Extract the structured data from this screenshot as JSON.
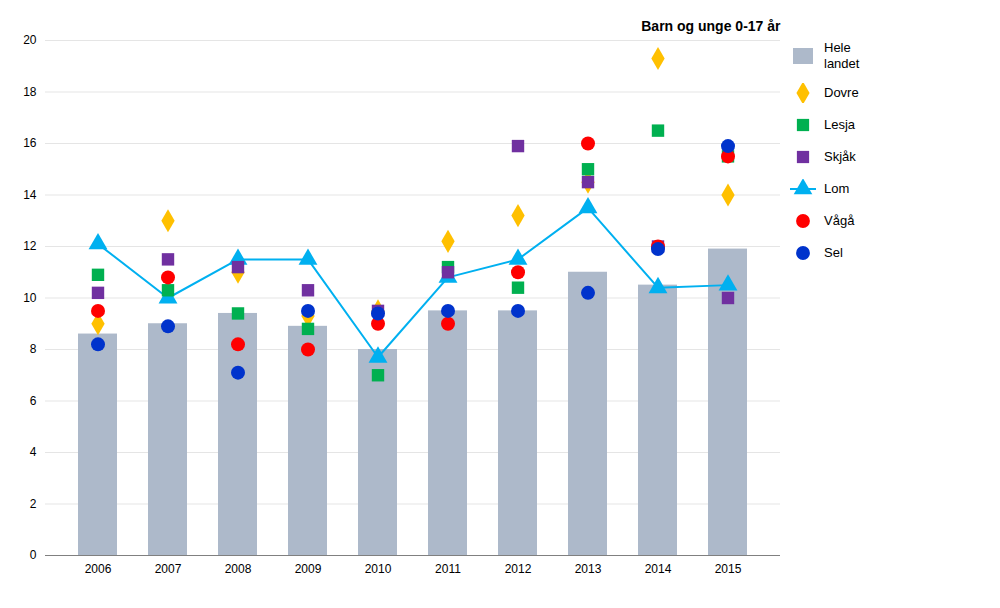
{
  "chart_data": {
    "type": "bar",
    "annotation": "Barn og unge 0-17 år",
    "categories": [
      "2006",
      "2007",
      "2008",
      "2009",
      "2010",
      "2011",
      "2012",
      "2013",
      "2014",
      "2015"
    ],
    "series": [
      {
        "name": "Hele\nlandet",
        "type": "bar",
        "color": "#adb9ca",
        "values": [
          8.6,
          9.0,
          9.4,
          8.9,
          8.0,
          9.5,
          9.5,
          11.0,
          10.5,
          11.9
        ]
      },
      {
        "name": "Dovre",
        "type": "scatter",
        "marker": "diamond",
        "color": "#ffc000",
        "values": [
          9.0,
          13.0,
          11.0,
          9.3,
          9.5,
          12.2,
          13.2,
          14.5,
          19.3,
          14.0
        ]
      },
      {
        "name": "Lesja",
        "type": "scatter",
        "marker": "square",
        "color": "#00b050",
        "values": [
          10.9,
          10.3,
          9.4,
          8.8,
          7.0,
          11.2,
          10.4,
          15.0,
          16.5,
          15.5
        ]
      },
      {
        "name": "Skjåk",
        "type": "scatter",
        "marker": "square",
        "color": "#7030a0",
        "values": [
          10.2,
          11.5,
          11.2,
          10.3,
          9.5,
          11.0,
          15.9,
          14.5,
          12.0,
          10.0
        ]
      },
      {
        "name": "Lom",
        "type": "line",
        "marker": "triangle",
        "color": "#00b0f0",
        "values": [
          12.1,
          10.0,
          11.5,
          11.5,
          7.7,
          10.8,
          11.5,
          13.5,
          10.4,
          10.5
        ]
      },
      {
        "name": "Vågå",
        "type": "scatter",
        "marker": "circle",
        "color": "#ff0000",
        "values": [
          9.5,
          10.8,
          8.2,
          8.0,
          9.0,
          9.0,
          11.0,
          16.0,
          12.0,
          15.5
        ]
      },
      {
        "name": "Sel",
        "type": "scatter",
        "marker": "circle",
        "color": "#0033cc",
        "values": [
          8.2,
          8.9,
          7.1,
          9.5,
          9.4,
          9.5,
          9.5,
          10.2,
          11.9,
          15.9
        ]
      }
    ],
    "ylim": [
      0,
      20
    ],
    "yticks": [
      0,
      2,
      4,
      6,
      8,
      10,
      12,
      14,
      16,
      18,
      20
    ],
    "grid": true,
    "legend": "right"
  }
}
